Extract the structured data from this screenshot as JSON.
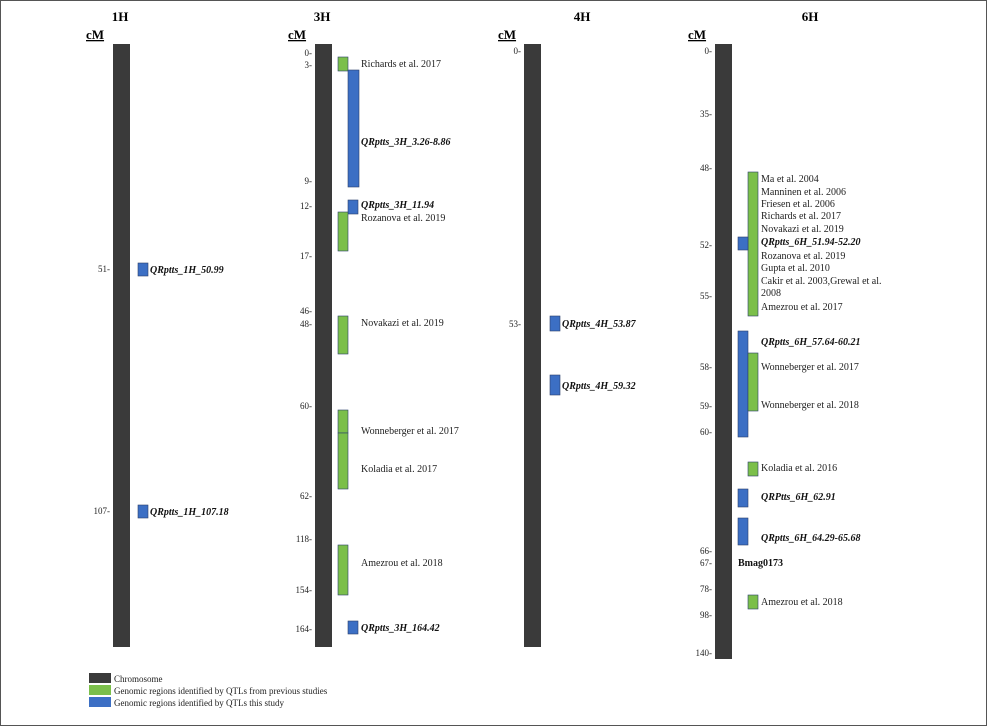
{
  "legend": {
    "chromosome": "Chromosome",
    "previous": "Genomic regions identified by QTLs from previous studies",
    "this_study": "Genomic regions identified by QTLs this study"
  },
  "colors": {
    "chromosome": "#3a3a3a",
    "previous": "#7bbf4a",
    "this_study": "#3c6fc4"
  },
  "cm_label": "cM",
  "chromosomes": [
    {
      "name": "1H",
      "ticks": [
        {
          "label": "51-"
        },
        {
          "label": "107-"
        }
      ],
      "regions": [
        {
          "type": "this_study",
          "label": "QRptts_1H_50.99"
        },
        {
          "type": "this_study",
          "label": "QRptts_1H_107.18"
        }
      ]
    },
    {
      "name": "3H",
      "ticks": [
        {
          "label": "0-"
        },
        {
          "label": "3-"
        },
        {
          "label": "9-"
        },
        {
          "label": "12-"
        },
        {
          "label": "17-"
        },
        {
          "label": "46-"
        },
        {
          "label": "48-"
        },
        {
          "label": "60-"
        },
        {
          "label": "62-"
        },
        {
          "label": "118-"
        },
        {
          "label": "154-"
        },
        {
          "label": "164-"
        }
      ],
      "regions": [
        {
          "type": "previous",
          "label": "Richards et al. 2017"
        },
        {
          "type": "this_study",
          "label": "QRptts_3H_3.26-8.86"
        },
        {
          "type": "this_study",
          "label": "QRptts_3H_11.94"
        },
        {
          "type": "previous",
          "label": "Rozanova et al. 2019"
        },
        {
          "type": "previous",
          "label": "Novakazi et al. 2019"
        },
        {
          "type": "previous",
          "label": "Wonneberger et al. 2017"
        },
        {
          "type": "previous",
          "label": "Koladia et al. 2017"
        },
        {
          "type": "previous",
          "label": "Amezrou et al. 2018"
        },
        {
          "type": "this_study",
          "label": "QRptts_3H_164.42"
        }
      ]
    },
    {
      "name": "4H",
      "ticks": [
        {
          "label": "0-"
        },
        {
          "label": "53-"
        }
      ],
      "regions": [
        {
          "type": "this_study",
          "label": "QRptts_4H_53.87"
        },
        {
          "type": "this_study",
          "label": "QRptts_4H_59.32"
        }
      ]
    },
    {
      "name": "6H",
      "ticks": [
        {
          "label": "0-"
        },
        {
          "label": "35-"
        },
        {
          "label": "48-"
        },
        {
          "label": "52-"
        },
        {
          "label": "55-"
        },
        {
          "label": "58-"
        },
        {
          "label": "59-"
        },
        {
          "label": "60-"
        },
        {
          "label": "66-"
        },
        {
          "label": "67-"
        },
        {
          "label": "78-"
        },
        {
          "label": "98-"
        },
        {
          "label": "140-"
        }
      ],
      "regions": [
        {
          "type": "previous",
          "label": "Ma et al. 2004"
        },
        {
          "type": "previous",
          "label": "Manninen et al. 2006"
        },
        {
          "type": "previous",
          "label": "Friesen et al. 2006"
        },
        {
          "type": "previous",
          "label": "Richards et al. 2017"
        },
        {
          "type": "previous",
          "label": "Novakazi et al. 2019"
        },
        {
          "type": "this_study",
          "label": "QRptts_6H_51.94-52.20"
        },
        {
          "type": "previous",
          "label": "Rozanova et al. 2019"
        },
        {
          "type": "previous",
          "label": "Gupta et al. 2010"
        },
        {
          "type": "previous",
          "label": "Cakir et al. 2003,Grewal et al."
        },
        {
          "type": "previous",
          "label": "2008"
        },
        {
          "type": "previous",
          "label": "Amezrou et al. 2017"
        },
        {
          "type": "this_study",
          "label": "QRptts_6H_57.64-60.21"
        },
        {
          "type": "previous",
          "label": "Wonneberger et al. 2017"
        },
        {
          "type": "previous",
          "label": "Wonneberger et al. 2018"
        },
        {
          "type": "previous",
          "label": "Koladia et al. 2016"
        },
        {
          "type": "this_study",
          "label": "QRPtts_6H_62.91"
        },
        {
          "type": "this_study",
          "label": "QRptts_6H_64.29-65.68"
        },
        {
          "type": "previous",
          "label": "Amezrou et al. 2018"
        }
      ],
      "marker": "Bmag0173"
    }
  ]
}
